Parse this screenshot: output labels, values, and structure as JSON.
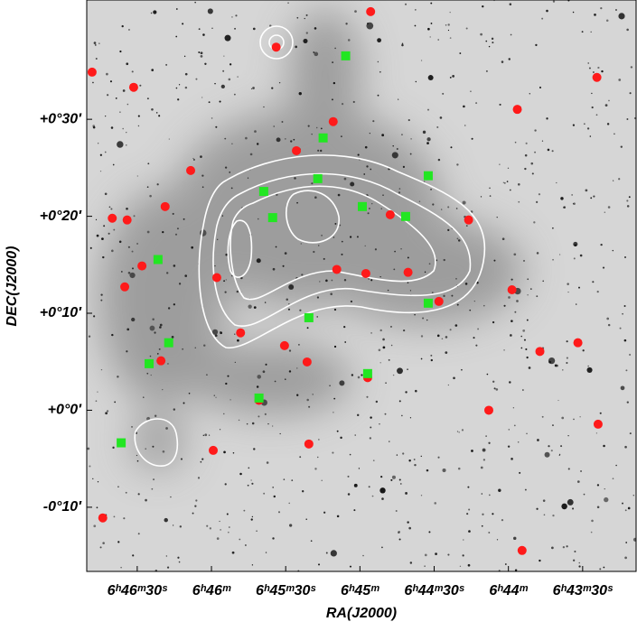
{
  "chart_data": {
    "type": "scatter",
    "xlabel": "RA(J2000)",
    "ylabel": "DEC(J2000)",
    "xlim": [
      101.71,
      100.785
    ],
    "ylim": [
      -0.277,
      0.705
    ],
    "xticks": [
      {
        "value": 101.625,
        "label": "6ʰ46ᵐ30ˢ"
      },
      {
        "value": 101.5,
        "label": "6ʰ46ᵐ"
      },
      {
        "value": 101.375,
        "label": "6ʰ45ᵐ30ˢ"
      },
      {
        "value": 101.25,
        "label": "6ʰ45ᵐ"
      },
      {
        "value": 101.125,
        "label": "6ʰ44ᵐ30ˢ"
      },
      {
        "value": 101.0,
        "label": "6ʰ44ᵐ"
      },
      {
        "value": 100.875,
        "label": "6ʰ43ᵐ30ˢ"
      }
    ],
    "yticks": [
      {
        "value": 0.5,
        "label": "+0°30′"
      },
      {
        "value": 0.3333,
        "label": "+0°20′"
      },
      {
        "value": 0.1667,
        "label": "+0°10′"
      },
      {
        "value": 0,
        "label": "+0°0′"
      },
      {
        "value": -0.1667,
        "label": "-0°10′"
      }
    ],
    "series": [
      {
        "color": "#ff1a1a",
        "marker": "circle",
        "x": [
          101.232,
          101.391,
          101.701,
          101.631,
          100.985,
          100.851,
          101.295,
          101.357,
          101.535,
          101.642,
          101.667,
          101.578,
          101.199,
          101.067,
          101.617,
          101.491,
          101.646,
          101.289,
          101.24,
          101.169,
          100.994,
          101.117,
          101.451,
          101.377,
          101.339,
          101.237,
          101.585,
          101.42,
          101.336,
          101.033,
          100.977,
          101.683,
          100.947,
          100.883,
          101.497,
          100.849
        ],
        "y": [
          0.685,
          0.624,
          0.581,
          0.555,
          0.517,
          0.572,
          0.496,
          0.446,
          0.412,
          0.327,
          0.33,
          0.35,
          0.336,
          0.327,
          0.248,
          0.228,
          0.212,
          0.242,
          0.235,
          0.237,
          0.207,
          0.187,
          0.133,
          0.111,
          0.083,
          0.056,
          0.085,
          0.017,
          -0.058,
          0,
          -0.241,
          -0.185,
          0.101,
          0.116,
          -0.069,
          -0.024
        ]
      },
      {
        "color": "#22e622",
        "marker": "square",
        "x": [
          101.274,
          101.312,
          101.135,
          101.321,
          101.412,
          101.246,
          101.397,
          101.59,
          101.135,
          101.237,
          101.652,
          101.572,
          101.605,
          101.42,
          101.336,
          101.173
        ],
        "y": [
          0.609,
          0.468,
          0.403,
          0.398,
          0.376,
          0.35,
          0.331,
          0.259,
          0.184,
          0.063,
          -0.056,
          0.116,
          0.08,
          0.021,
          0.159,
          0.333
        ]
      }
    ]
  }
}
